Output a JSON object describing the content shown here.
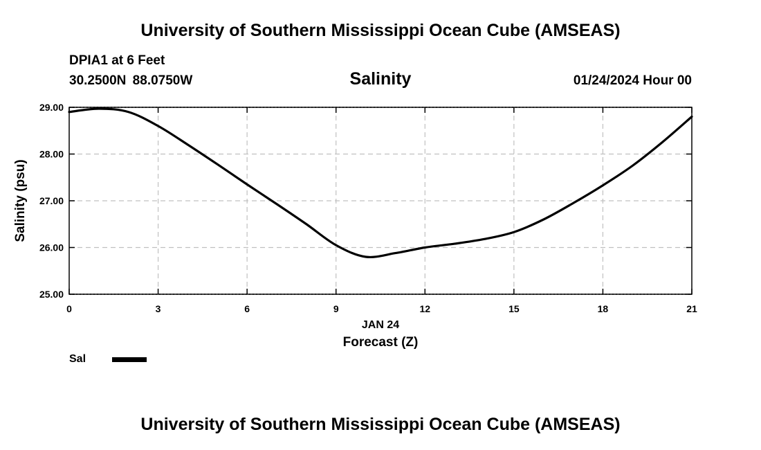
{
  "header": {
    "organization": "University of Southern Mississippi Ocean Cube (AMSEAS)",
    "station": "DPIA1 at 6 Feet",
    "coordinates": "30.2500N  88.0750W",
    "datetime": "01/24/2024 Hour 00"
  },
  "footer": {
    "organization": "University of Southern Mississippi Ocean Cube (AMSEAS)"
  },
  "legend": {
    "label": "Sal"
  },
  "colors": {
    "line": "#000000",
    "grid": "#c0c0c0"
  },
  "chart_data": {
    "type": "line",
    "title": "Salinity",
    "xlabel": "Forecast (Z)",
    "xlabel_date": "JAN 24",
    "ylabel": "Salinity (psu)",
    "xlim": [
      0,
      21
    ],
    "ylim": [
      25.0,
      29.0
    ],
    "xticks": [
      0,
      3,
      6,
      9,
      12,
      15,
      18,
      21
    ],
    "xtick_labels": [
      "0",
      "3",
      "6",
      "9",
      "12",
      "15",
      "18",
      "21"
    ],
    "yticks": [
      25.0,
      26.0,
      27.0,
      28.0,
      29.0
    ],
    "ytick_labels": [
      "25.00",
      "26.00",
      "27.00",
      "28.00",
      "29.00"
    ],
    "grid": true,
    "series": [
      {
        "name": "Sal",
        "x": [
          0,
          1,
          2,
          3,
          4,
          5,
          6,
          7,
          8,
          9,
          10,
          11,
          12,
          13,
          14,
          15,
          16,
          17,
          18,
          19,
          20,
          21
        ],
        "values": [
          28.9,
          28.97,
          28.9,
          28.6,
          28.2,
          27.78,
          27.35,
          26.93,
          26.5,
          26.05,
          25.8,
          25.88,
          26.0,
          26.08,
          26.18,
          26.33,
          26.6,
          26.95,
          27.33,
          27.75,
          28.25,
          28.8
        ]
      }
    ]
  }
}
